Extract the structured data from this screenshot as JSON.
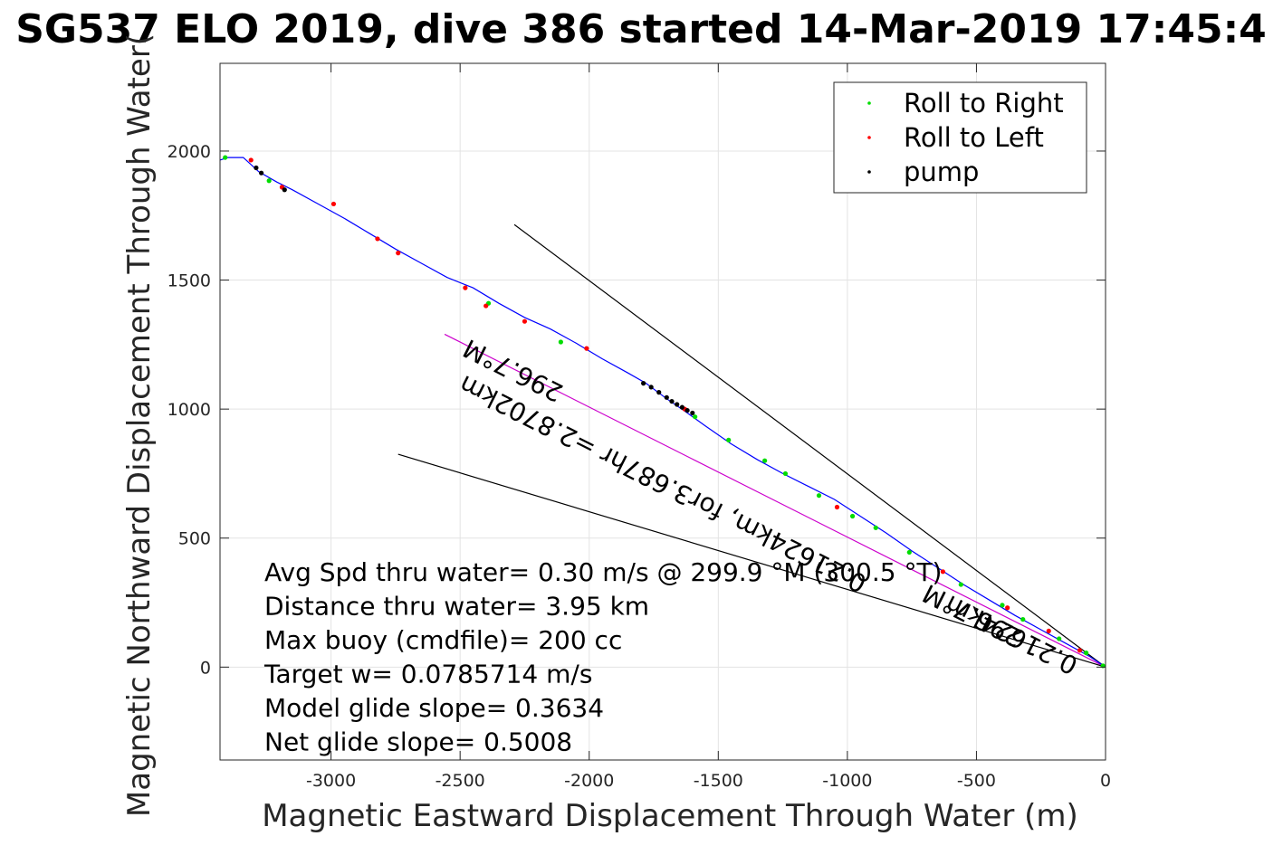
{
  "chart_data": {
    "type": "line",
    "title": "SG537 ELO 2019, dive 386 started 14-Mar-2019 17:45:4",
    "xlabel": "Magnetic Eastward Displacement Through Water (m)",
    "ylabel": "Magnetic Northward Displacement Through Water(",
    "xlim": [
      -3430,
      0
    ],
    "ylim": [
      -360,
      2340
    ],
    "xticks": [
      -3000,
      -2500,
      -2000,
      -1500,
      -1000,
      -500,
      0
    ],
    "yticks": [
      0,
      500,
      1000,
      1500,
      2000
    ],
    "grid": true,
    "legend_position": "top-right",
    "legend": [
      {
        "label": "Roll to Right",
        "color": "#00dd00"
      },
      {
        "label": "Roll to Left",
        "color": "#ff0000"
      },
      {
        "label": "pump",
        "color": "#000000"
      }
    ],
    "series": [
      {
        "color": "#0000ff",
        "x": [
          0,
          -60,
          -150,
          -250,
          -350,
          -450,
          -550,
          -650,
          -750,
          -850,
          -950,
          -1050,
          -1150,
          -1250,
          -1350,
          -1450,
          -1550,
          -1620,
          -1700,
          -1780,
          -1850,
          -1950,
          -2050,
          -2150,
          -2250,
          -2350,
          -2450,
          -2550,
          -2650,
          -2750,
          -2850,
          -2950,
          -3050,
          -3150,
          -3210,
          -3280,
          -3340,
          -3400,
          -3430
        ],
        "y": [
          0,
          40,
          90,
          145,
          200,
          260,
          320,
          385,
          450,
          520,
          585,
          650,
          700,
          750,
          805,
          865,
          935,
          985,
          1040,
          1100,
          1140,
          1195,
          1255,
          1310,
          1355,
          1410,
          1470,
          1510,
          1565,
          1620,
          1680,
          1740,
          1795,
          1850,
          1880,
          1920,
          1975,
          1975,
          1965
        ]
      }
    ],
    "markers": {
      "roll_right": {
        "color": "#00dd00",
        "x": [
          -10,
          -75,
          -180,
          -320,
          -400,
          -560,
          -760,
          -890,
          -980,
          -1110,
          -1240,
          -1320,
          -1460,
          -1590,
          -2110,
          -2390,
          -3240,
          -3410
        ],
        "y": [
          5,
          55,
          110,
          185,
          240,
          320,
          445,
          540,
          585,
          665,
          750,
          800,
          880,
          970,
          1260,
          1410,
          1885,
          1975
        ]
      },
      "roll_left": {
        "color": "#ff0000",
        "x": [
          -100,
          -220,
          -380,
          -630,
          -1040,
          -1630,
          -2010,
          -2250,
          -2400,
          -2480,
          -2740,
          -2820,
          -2990,
          -3190,
          -3310
        ],
        "y": [
          65,
          140,
          230,
          370,
          620,
          1000,
          1235,
          1340,
          1400,
          1470,
          1605,
          1660,
          1795,
          1860,
          1965
        ]
      },
      "pump": {
        "color": "#000000",
        "x": [
          -1790,
          -1760,
          -1730,
          -1700,
          -1680,
          -1660,
          -1640,
          -1620,
          -1600,
          -3180,
          -3270,
          -3290
        ],
        "y": [
          1100,
          1085,
          1065,
          1045,
          1030,
          1018,
          1007,
          995,
          985,
          1850,
          1915,
          1935
        ]
      }
    },
    "reference_lines": [
      {
        "color": "#000000",
        "x": [
          0,
          -2290
        ],
        "y": [
          0,
          1715
        ]
      },
      {
        "color": "#cc00cc",
        "x": [
          0,
          -2560
        ],
        "y": [
          0,
          1290
        ]
      },
      {
        "color": "#000000",
        "x": [
          0,
          -2740
        ],
        "y": [
          0,
          825
        ]
      }
    ],
    "rotated_labels": [
      {
        "text": "296.7°M",
        "x": -2280,
        "y": 1180,
        "angle": 206.7
      },
      {
        "text": "0.21624km, for3.687hr =2.8702km",
        "x": -1700,
        "y": 740,
        "angle": 206.7
      },
      {
        "text": "296.7°M",
        "x": -500,
        "y": 230,
        "angle": 206.7
      },
      {
        "text": "0.21624km",
        "x": -350,
        "y": 155,
        "angle": 206.7
      }
    ],
    "annotations": [
      "Avg Spd thru water=  0.30 m/s @ 299.9  °M (300.5 °T)",
      "Distance thru water=  3.95 km",
      "Max buoy (cmdfile)= 200 cc",
      "Target w= 0.0785714 m/s",
      "Model glide slope= 0.3634",
      "Net glide slope= 0.5008"
    ]
  }
}
